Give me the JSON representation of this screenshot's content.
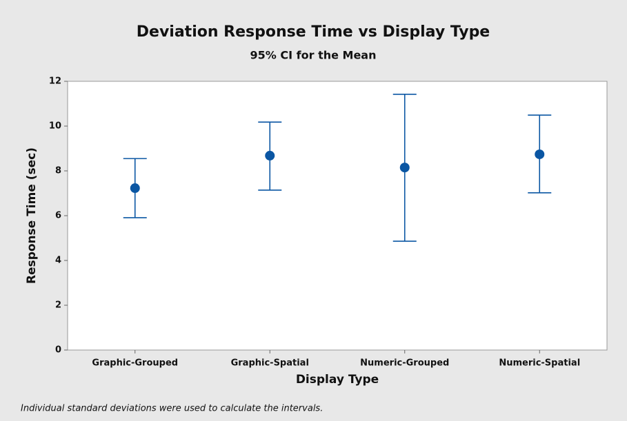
{
  "chart_data": {
    "type": "interval",
    "title": "Deviation Response Time vs Display Type",
    "subtitle": "95% CI for the Mean",
    "x_label": "Display Type",
    "y_label": "Response Time (sec)",
    "footnote": "Individual standard deviations were used to calculate the intervals.",
    "categories": [
      "Graphic-Grouped",
      "Graphic-Spatial",
      "Numeric-Grouped",
      "Numeric-Spatial"
    ],
    "values": [
      7.23,
      8.68,
      8.15,
      8.74
    ],
    "ci_low": [
      5.91,
      7.14,
      4.86,
      7.02
    ],
    "ci_high": [
      8.55,
      10.18,
      11.42,
      10.49
    ],
    "color": "#0a56a3",
    "ylim": [
      0,
      12
    ],
    "yticks": [
      0,
      2,
      4,
      6,
      8,
      10,
      12
    ],
    "grid": false
  }
}
